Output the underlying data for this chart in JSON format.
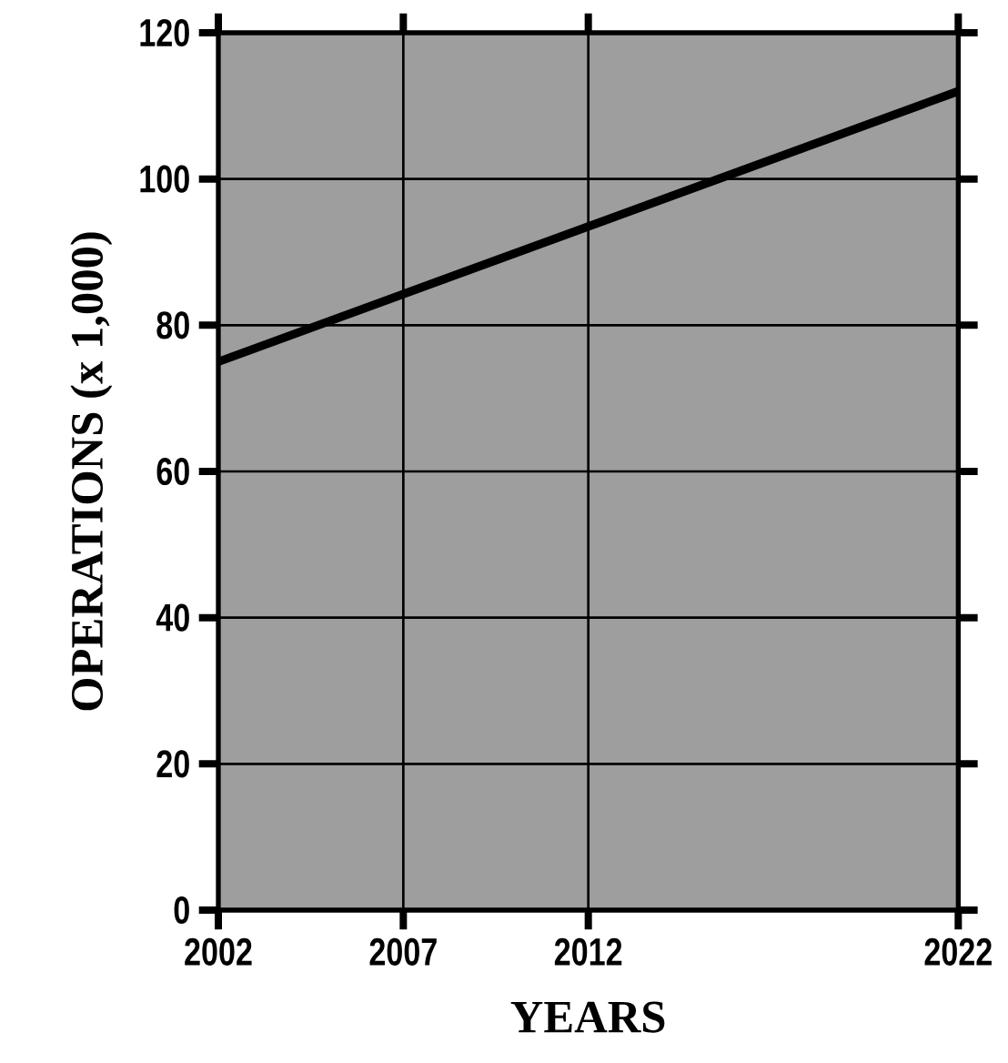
{
  "chart_data": {
    "type": "line",
    "xlabel": "YEARS",
    "ylabel": "OPERATIONS (x 1,000)",
    "x": [
      2002,
      2022
    ],
    "series": [
      {
        "color": "#000000",
        "values": [
          75,
          112
        ]
      }
    ],
    "xlim": [
      2002,
      2022
    ],
    "xticks": [
      2002,
      2007,
      2012,
      2022
    ],
    "ylim": [
      0,
      120
    ],
    "yticks": [
      0,
      20,
      40,
      60,
      80,
      100,
      120
    ],
    "grid": true,
    "marker": "none",
    "line_style": "solid"
  }
}
